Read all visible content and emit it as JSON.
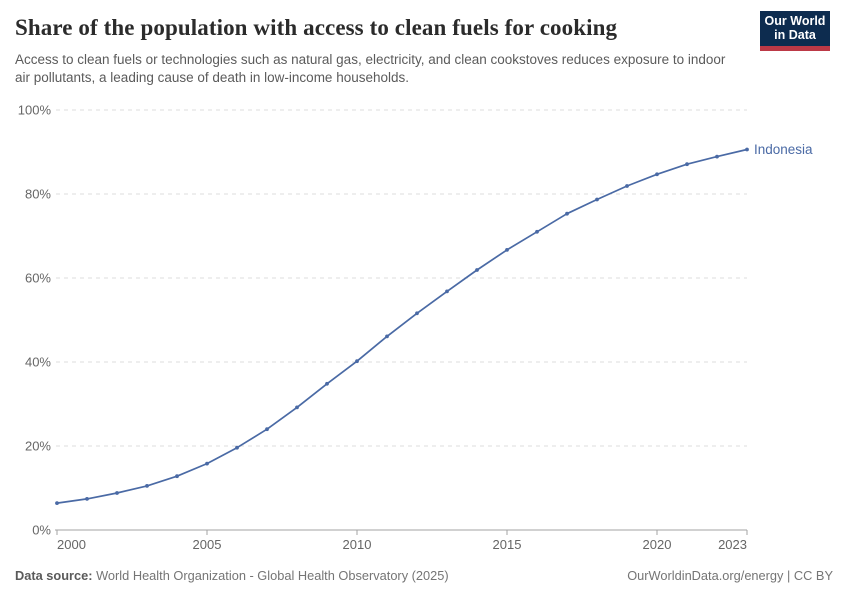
{
  "header": {
    "title": "Share of the population with access to clean fuels for cooking",
    "subtitle": "Access to clean fuels or technologies such as natural gas, electricity, and clean cookstoves reduces exposure to indoor air pollutants, a leading cause of death in low-income households.",
    "logo": {
      "line1": "Our World",
      "line2": "in Data",
      "bg_color": "#0d2c4f",
      "stripe_color": "#bc3946"
    }
  },
  "footer": {
    "source_label": "Data source:",
    "source_text": " World Health Organization - Global Health Observatory (2025)",
    "credit": "OurWorldinData.org/energy | CC BY"
  },
  "chart_data": {
    "type": "line",
    "title": "Share of the population with access to clean fuels for cooking",
    "xlabel": "",
    "ylabel": "",
    "unit": "%",
    "xlim": [
      2000,
      2023
    ],
    "ylim": [
      0,
      100
    ],
    "grid": "horizontal-dashed",
    "legend_position": "end-of-line-label",
    "x": [
      2000,
      2001,
      2002,
      2003,
      2004,
      2005,
      2006,
      2007,
      2008,
      2009,
      2010,
      2011,
      2012,
      2013,
      2014,
      2015,
      2016,
      2017,
      2018,
      2019,
      2020,
      2021,
      2022,
      2023
    ],
    "series": [
      {
        "name": "Indonesia",
        "color": "#4a6aa5",
        "values": [
          6.4,
          7.4,
          8.8,
          10.5,
          12.8,
          15.8,
          19.6,
          24.0,
          29.2,
          34.8,
          40.2,
          46.1,
          51.6,
          56.8,
          61.9,
          66.7,
          71.0,
          75.3,
          78.7,
          81.9,
          84.7,
          87.1,
          88.9,
          90.6
        ]
      }
    ],
    "x_ticks": [
      2000,
      2005,
      2010,
      2015,
      2020,
      2023
    ],
    "x_tick_labels": [
      "2000",
      "2005",
      "2010",
      "2015",
      "2020",
      "2023"
    ],
    "y_ticks": [
      0,
      20,
      40,
      60,
      80,
      100
    ],
    "y_tick_labels": [
      "0%",
      "20%",
      "40%",
      "60%",
      "80%",
      "100%"
    ],
    "colors": {
      "gridline": "#dcdcdc",
      "axis": "#a3a3a3",
      "tick_label": "#666666"
    }
  }
}
